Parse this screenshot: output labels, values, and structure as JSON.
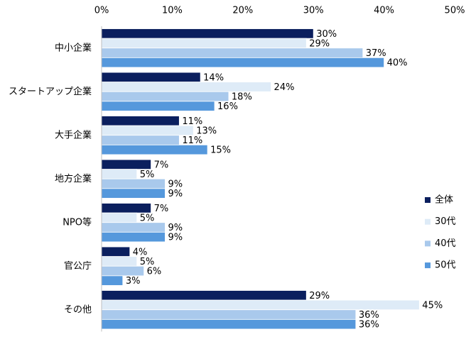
{
  "chart_data": {
    "type": "hbar",
    "categories": [
      "中小企業",
      "スタートアップ企業",
      "大手企業",
      "地方企業",
      "NPO等",
      "官公庁",
      "その他"
    ],
    "series": [
      {
        "name": "全体",
        "color": "#0b1f5e",
        "values": [
          30,
          14,
          11,
          7,
          7,
          4,
          29
        ],
        "value_labels": [
          "30%",
          "14%",
          "11%",
          "7%",
          "7%",
          "4%",
          "29%"
        ]
      },
      {
        "name": "30代",
        "color": "#deebf7",
        "values": [
          29,
          24,
          13,
          5,
          5,
          5,
          45
        ],
        "value_labels": [
          "29%",
          "24%",
          "13%",
          "5%",
          "5%",
          "5%",
          "45%"
        ]
      },
      {
        "name": "40代",
        "color": "#a9c9ec",
        "values": [
          37,
          18,
          11,
          9,
          9,
          6,
          36
        ],
        "value_labels": [
          "37%",
          "18%",
          "11%",
          "9%",
          "9%",
          "6%",
          "36%"
        ]
      },
      {
        "name": "50代",
        "color": "#5598dc",
        "values": [
          40,
          16,
          15,
          9,
          9,
          3,
          36
        ],
        "value_labels": [
          "40%",
          "16%",
          "15%",
          "9%",
          "9%",
          "3%",
          "36%"
        ]
      }
    ],
    "xlim": [
      0,
      50
    ],
    "xticks": [
      {
        "value": 0,
        "label": "0%"
      },
      {
        "value": 10,
        "label": "10%"
      },
      {
        "value": 20,
        "label": "20%"
      },
      {
        "value": 30,
        "label": "30%"
      },
      {
        "value": 40,
        "label": "40%"
      },
      {
        "value": 50,
        "label": "50%"
      }
    ],
    "legend": "right"
  }
}
